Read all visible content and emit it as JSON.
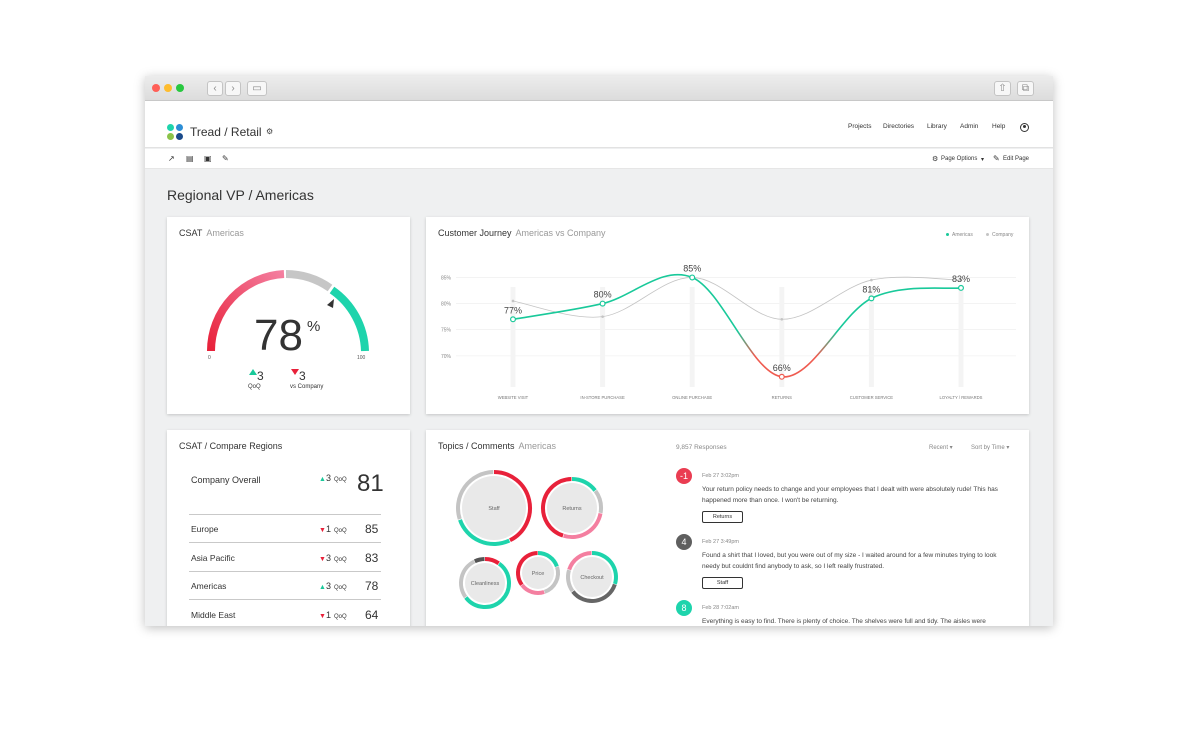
{
  "app": {
    "title": "Tread / Retail",
    "nav": [
      "Projects",
      "Directories",
      "Library",
      "Admin",
      "Help"
    ],
    "page_options_label": "Page Options",
    "edit_page_label": "Edit Page"
  },
  "page": {
    "title": "Regional VP  /  Americas"
  },
  "csat": {
    "title": "CSAT",
    "subtitle": "Americas",
    "value": "78",
    "unit": "%",
    "gauge_min": "0",
    "gauge_max": "100",
    "deltas": [
      {
        "value": "3",
        "label": "QoQ",
        "direction": "up"
      },
      {
        "value": "3",
        "label": "vs Company",
        "direction": "down"
      }
    ]
  },
  "journey": {
    "title": "Customer Journey",
    "subtitle": "Americas vs Company",
    "legend": [
      "Americas",
      "Company"
    ]
  },
  "compare": {
    "title": "CSAT  /  Compare Regions",
    "overall": {
      "name": "Company Overall",
      "delta": "3",
      "direction": "up",
      "period": "QoQ",
      "value": "81"
    },
    "rows": [
      {
        "name": "Europe",
        "delta": "1",
        "direction": "down",
        "period": "QoQ",
        "value": "85"
      },
      {
        "name": "Asia Pacific",
        "delta": "3",
        "direction": "down",
        "period": "QoQ",
        "value": "83"
      },
      {
        "name": "Americas",
        "delta": "3",
        "direction": "up",
        "period": "QoQ",
        "value": "78"
      },
      {
        "name": "Middle East",
        "delta": "1",
        "direction": "down",
        "period": "QoQ",
        "value": "64"
      }
    ]
  },
  "topics": {
    "title": "Topics / Comments",
    "subtitle": "Americas",
    "responses": "9,857 Responses",
    "filter_recent": "Recent",
    "filter_sort": "Sort by Time",
    "bubbles": [
      "Staff",
      "Returns",
      "Cleanliness",
      "Price",
      "Checkout"
    ]
  },
  "comments": [
    {
      "score": "-1",
      "color": "#ea3d52",
      "date": "Feb 27   3:02pm",
      "text": "Your return policy needs to change and your employees that I dealt with were absolutely rude! This has happened more than once.  I won't be returning.",
      "tag": "Returns"
    },
    {
      "score": "4",
      "color": "#5f5f5f",
      "date": "Feb 27   3:49pm",
      "text": "Found a shirt that I loved, but you were out of my size - I waited around for a few minutes trying to look needy but couldnt find anybody to ask, so I left really frustrated.",
      "tag": "Staff"
    },
    {
      "score": "8",
      "color": "#1ed4ac",
      "date": "Feb 28   7:02am",
      "text": "Everything is easy to find. There is plenty of choice. The shelves were full and tidy. The aisles were",
      "tag": ""
    }
  ],
  "colors": {
    "americas": "#19c99a",
    "company": "#c4c4c4",
    "negative": "#ef5b50",
    "red": "#e8213a",
    "pink": "#f47fa0",
    "teal": "#1ed4ac"
  },
  "chart_data": {
    "type": "line",
    "title": "Customer Journey",
    "categories": [
      "WEBSITE VISIT",
      "IN-STORE PURCHASE",
      "ONLINE PURCHASE",
      "RETURNS",
      "CUSTOMER SERVICE",
      "LOYALTY / REWARDS"
    ],
    "series": [
      {
        "name": "Americas",
        "values": [
          77,
          80,
          85,
          66,
          81,
          83
        ]
      },
      {
        "name": "Company",
        "values": [
          80.5,
          77.5,
          85,
          77,
          84.5,
          84.5
        ]
      }
    ],
    "point_labels": [
      "77%",
      "80%",
      "85%",
      "66%",
      "81%",
      "83%"
    ],
    "yticks": [
      "85%",
      "80%",
      "75%",
      "70%"
    ],
    "ylim": [
      65,
      87
    ],
    "legend": "top-right",
    "grid": true
  }
}
